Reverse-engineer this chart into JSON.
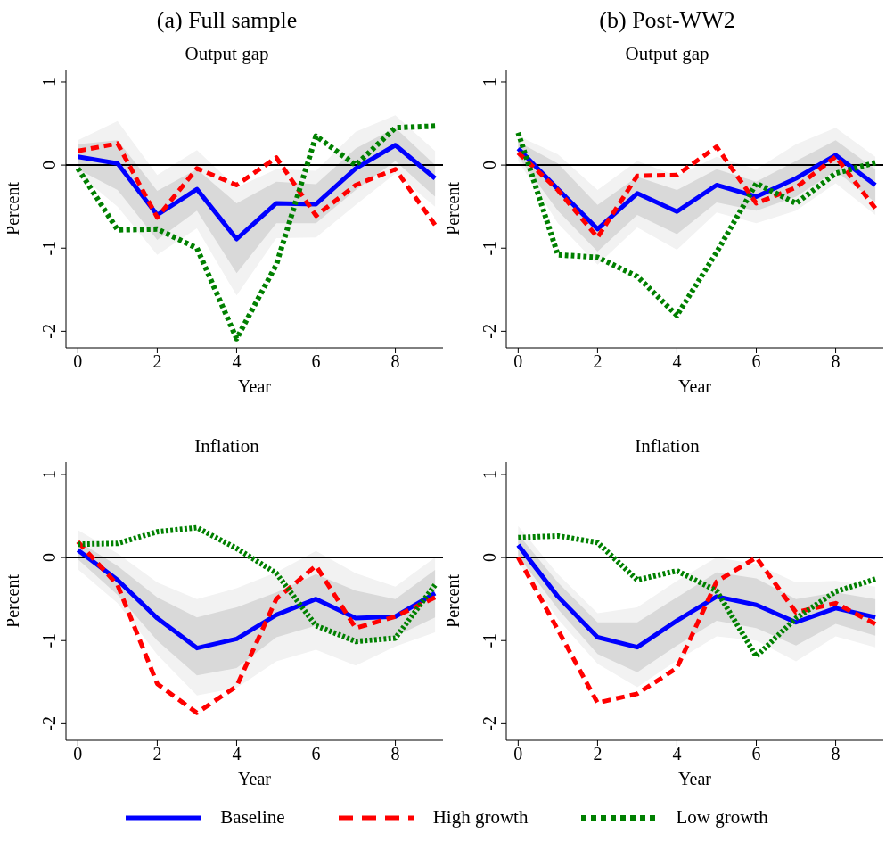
{
  "chart_data": [
    {
      "type": "line",
      "subtitle": "(a) Full sample",
      "title": "Output gap",
      "xlabel": "Year",
      "ylabel": "Percent",
      "x": [
        0,
        1,
        2,
        3,
        4,
        5,
        6,
        7,
        8,
        9
      ],
      "xlim": [
        -0.3,
        9.2
      ],
      "xticks": [
        0,
        2,
        4,
        6,
        8
      ],
      "ylim": [
        -2.2,
        1.15
      ],
      "yticks": [
        -2,
        -1,
        0,
        1
      ],
      "legend": "bottom",
      "ref_lines": [
        {
          "axis": "y",
          "value": 0,
          "color": "#000000"
        }
      ],
      "series": [
        {
          "color": "#f2f2f2",
          "values": [
            null,
            null,
            null,
            null,
            null,
            null,
            null,
            null,
            null,
            null
          ],
          "lower": [
            -0.1,
            -0.5,
            -1.08,
            -0.76,
            -1.57,
            -0.88,
            -0.87,
            -0.48,
            -0.1,
            -0.5
          ],
          "upper": [
            0.3,
            0.53,
            -0.12,
            0.18,
            -0.27,
            -0.05,
            -0.07,
            0.4,
            0.6,
            0.17
          ]
        },
        {
          "name": "Baseline",
          "color": "#0000ff",
          "line_style": "solid",
          "values": [
            0.1,
            0.02,
            -0.6,
            -0.29,
            -0.89,
            -0.46,
            -0.47,
            -0.04,
            0.24,
            -0.16
          ],
          "lower": [
            -0.05,
            -0.3,
            -0.9,
            -0.55,
            -1.3,
            -0.7,
            -0.7,
            -0.3,
            0.05,
            -0.38
          ],
          "upper": [
            0.25,
            0.3,
            -0.31,
            -0.05,
            -0.46,
            -0.2,
            -0.23,
            0.2,
            0.45,
            0.0
          ]
        },
        {
          "name": "High growth",
          "color": "#ff0000",
          "line_style": "dashed",
          "values": [
            0.17,
            0.26,
            -0.63,
            -0.04,
            -0.24,
            0.09,
            -0.61,
            -0.24,
            -0.05,
            -0.72
          ]
        },
        {
          "name": "Low growth",
          "color": "#008000",
          "line_style": "dotted",
          "values": [
            -0.04,
            -0.78,
            -0.77,
            -1.0,
            -2.09,
            -1.2,
            0.35,
            0.0,
            0.45,
            0.47
          ]
        }
      ]
    },
    {
      "type": "line",
      "subtitle": "(b) Post-WW2",
      "title": "Output gap",
      "xlabel": "Year",
      "ylabel": "Percent",
      "x": [
        0,
        1,
        2,
        3,
        4,
        5,
        6,
        7,
        8,
        9
      ],
      "xlim": [
        -0.3,
        9.2
      ],
      "xticks": [
        0,
        2,
        4,
        6,
        8
      ],
      "ylim": [
        -2.2,
        1.15
      ],
      "yticks": [
        -2,
        -1,
        0,
        1
      ],
      "ref_lines": [
        {
          "axis": "y",
          "value": 0,
          "color": "#000000"
        }
      ],
      "series": [
        {
          "color": "#f2f2f2",
          "values": [
            null,
            null,
            null,
            null,
            null,
            null,
            null,
            null,
            null,
            null
          ],
          "lower": [
            0.05,
            -0.7,
            -1.2,
            -0.75,
            -1.02,
            -0.57,
            -0.7,
            -0.55,
            -0.22,
            -0.6
          ],
          "upper": [
            0.35,
            0.13,
            -0.3,
            0.05,
            -0.13,
            0.1,
            -0.05,
            0.25,
            0.45,
            0.1
          ]
        },
        {
          "color": "#0000ff",
          "line_style": "solid",
          "values": [
            0.2,
            -0.29,
            -0.77,
            -0.34,
            -0.56,
            -0.24,
            -0.38,
            -0.16,
            0.12,
            -0.24
          ],
          "lower": [
            0.1,
            -0.55,
            -1.04,
            -0.6,
            -0.83,
            -0.45,
            -0.55,
            -0.38,
            -0.07,
            -0.45
          ],
          "upper": [
            0.28,
            0.02,
            -0.48,
            -0.14,
            -0.3,
            -0.05,
            -0.2,
            0.05,
            0.3,
            -0.05
          ]
        },
        {
          "color": "#ff0000",
          "line_style": "dashed",
          "values": [
            0.15,
            -0.3,
            -0.87,
            -0.13,
            -0.12,
            0.22,
            -0.46,
            -0.27,
            0.1,
            -0.52
          ]
        },
        {
          "color": "#008000",
          "line_style": "dotted",
          "values": [
            0.39,
            -1.08,
            -1.11,
            -1.34,
            -1.81,
            -1.05,
            -0.22,
            -0.46,
            -0.1,
            0.03
          ]
        }
      ]
    },
    {
      "type": "line",
      "title": "Inflation",
      "xlabel": "Year",
      "ylabel": "Percent",
      "x": [
        0,
        1,
        2,
        3,
        4,
        5,
        6,
        7,
        8,
        9
      ],
      "xlim": [
        -0.3,
        9.2
      ],
      "xticks": [
        0,
        2,
        4,
        6,
        8
      ],
      "ylim": [
        -2.2,
        1.15
      ],
      "yticks": [
        -2,
        -1,
        0,
        1
      ],
      "ref_lines": [
        {
          "axis": "y",
          "value": 0,
          "color": "#000000"
        }
      ],
      "series": [
        {
          "color": "#f2f2f2",
          "values": [
            null,
            null,
            null,
            null,
            null,
            null,
            null,
            null,
            null,
            null
          ],
          "lower": [
            -0.14,
            -0.55,
            -1.17,
            -1.66,
            -1.57,
            -1.25,
            -1.11,
            -1.3,
            -1.07,
            -0.9
          ],
          "upper": [
            0.33,
            0.05,
            -0.3,
            -0.5,
            -0.37,
            -0.18,
            0.08,
            -0.19,
            -0.35,
            0.0
          ]
        },
        {
          "color": "#0000ff",
          "line_style": "solid",
          "values": [
            0.09,
            -0.27,
            -0.73,
            -1.09,
            -0.98,
            -0.69,
            -0.5,
            -0.73,
            -0.71,
            -0.43
          ],
          "lower": [
            -0.02,
            -0.45,
            -1.0,
            -1.42,
            -1.33,
            -0.96,
            -0.82,
            -1.03,
            -0.95,
            -0.72
          ],
          "upper": [
            0.2,
            -0.1,
            -0.48,
            -0.72,
            -0.6,
            -0.42,
            -0.2,
            -0.4,
            -0.5,
            -0.15
          ]
        },
        {
          "color": "#ff0000",
          "line_style": "dashed",
          "values": [
            0.19,
            -0.33,
            -1.52,
            -1.87,
            -1.55,
            -0.5,
            -0.1,
            -0.85,
            -0.71,
            -0.48
          ]
        },
        {
          "color": "#008000",
          "line_style": "dotted",
          "values": [
            0.16,
            0.17,
            0.31,
            0.36,
            0.11,
            -0.19,
            -0.82,
            -1.01,
            -0.97,
            -0.33
          ]
        }
      ]
    },
    {
      "type": "line",
      "title": "Inflation",
      "xlabel": "Year",
      "ylabel": "Percent",
      "x": [
        0,
        1,
        2,
        3,
        4,
        5,
        6,
        7,
        8,
        9
      ],
      "xlim": [
        -0.3,
        9.2
      ],
      "xticks": [
        0,
        2,
        4,
        6,
        8
      ],
      "ylim": [
        -2.2,
        1.15
      ],
      "yticks": [
        -2,
        -1,
        0,
        1
      ],
      "ref_lines": [
        {
          "axis": "y",
          "value": 0,
          "color": "#000000"
        }
      ],
      "series": [
        {
          "color": "#f2f2f2",
          "values": [
            null,
            null,
            null,
            null,
            null,
            null,
            null,
            null,
            null,
            null
          ],
          "lower": [
            -0.05,
            -0.74,
            -1.28,
            -1.56,
            -1.24,
            -0.95,
            -1.0,
            -1.25,
            -0.95,
            -1.08
          ],
          "upper": [
            0.38,
            -0.2,
            -0.67,
            -0.6,
            -0.28,
            0.0,
            -0.08,
            -0.3,
            -0.28,
            -0.35
          ]
        },
        {
          "color": "#0000ff",
          "line_style": "solid",
          "values": [
            0.15,
            -0.47,
            -0.96,
            -1.08,
            -0.76,
            -0.47,
            -0.57,
            -0.78,
            -0.61,
            -0.72
          ],
          "lower": [
            0.02,
            -0.62,
            -1.16,
            -1.38,
            -1.06,
            -0.76,
            -0.85,
            -1.06,
            -0.8,
            -0.94
          ],
          "upper": [
            0.28,
            -0.3,
            -0.78,
            -0.78,
            -0.48,
            -0.18,
            -0.25,
            -0.5,
            -0.42,
            -0.5
          ]
        },
        {
          "color": "#ff0000",
          "line_style": "dashed",
          "values": [
            0.0,
            -0.87,
            -1.75,
            -1.64,
            -1.33,
            -0.29,
            0.0,
            -0.66,
            -0.55,
            -0.8
          ]
        },
        {
          "color": "#008000",
          "line_style": "dotted",
          "values": [
            0.24,
            0.26,
            0.18,
            -0.27,
            -0.16,
            -0.4,
            -1.19,
            -0.73,
            -0.41,
            -0.26
          ]
        }
      ]
    }
  ]
}
